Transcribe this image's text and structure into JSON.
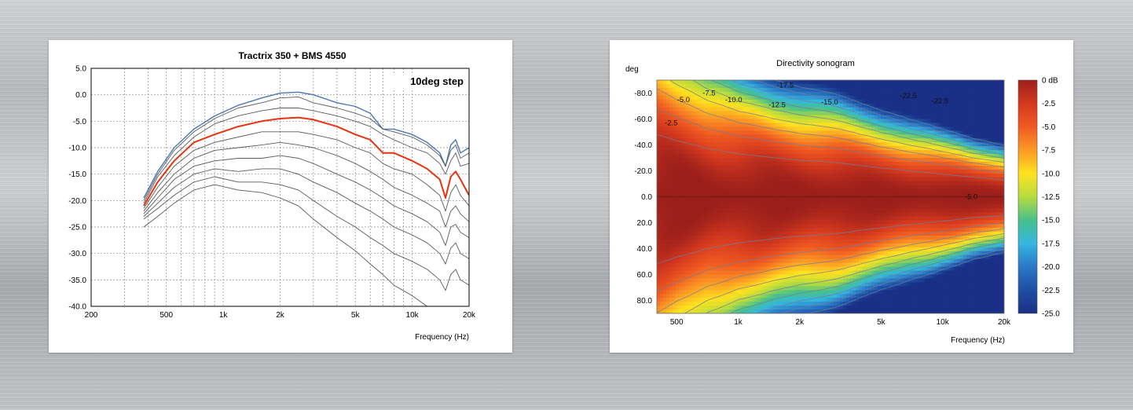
{
  "chart_data": [
    {
      "type": "line",
      "title": "Tractrix 350 + BMS 4550",
      "xlabel": "Frequency (Hz)",
      "ylabel": "",
      "annotation": "10deg step",
      "x_scale": "log",
      "xlim": [
        200,
        20000
      ],
      "ylim": [
        -40,
        5
      ],
      "grid": true,
      "x_ticks": [
        {
          "value": 200,
          "label": "200"
        },
        {
          "value": 500,
          "label": "500"
        },
        {
          "value": 1000,
          "label": "1k"
        },
        {
          "value": 2000,
          "label": "2k"
        },
        {
          "value": 5000,
          "label": "5k"
        },
        {
          "value": 10000,
          "label": "10k"
        },
        {
          "value": 20000,
          "label": "20k"
        }
      ],
      "y_ticks": [
        {
          "value": 5,
          "label": "5.0"
        },
        {
          "value": 0,
          "label": "0.0"
        },
        {
          "value": -5,
          "label": "-5.0"
        },
        {
          "value": -10,
          "label": "-10.0"
        },
        {
          "value": -15,
          "label": "-15.0"
        },
        {
          "value": -20,
          "label": "-20.0"
        },
        {
          "value": -25,
          "label": "-25.0"
        },
        {
          "value": -30,
          "label": "-30.0"
        },
        {
          "value": -35,
          "label": "-35.0"
        },
        {
          "value": -40,
          "label": "-40.0"
        }
      ],
      "x": [
        380,
        450,
        550,
        700,
        900,
        1200,
        1600,
        2000,
        2500,
        3000,
        4000,
        5000,
        6000,
        7000,
        8000,
        10000,
        12000,
        14000,
        15000,
        16000,
        17000,
        18000,
        20000
      ],
      "series": [
        {
          "color": "#4a78b5",
          "values": [
            -19.5,
            -14.5,
            -10,
            -6.5,
            -4,
            -2,
            -0.6,
            0.3,
            0.5,
            0,
            -1.5,
            -2.2,
            -3.5,
            -6.5,
            -6.5,
            -7.5,
            -9,
            -11,
            -13.5,
            -9.5,
            -8.5,
            -11,
            -10
          ]
        },
        {
          "color": "#5a5a5a",
          "values": [
            -20,
            -15,
            -10.5,
            -7,
            -4.5,
            -2.5,
            -1.5,
            -0.6,
            -0.4,
            -1.5,
            -2.5,
            -3.5,
            -4.5,
            -6.5,
            -7,
            -8,
            -9.5,
            -11.5,
            -13.5,
            -10.5,
            -9.5,
            -12,
            -11
          ]
        },
        {
          "color": "#5a5a5a",
          "values": [
            -20.5,
            -15.5,
            -11.5,
            -8,
            -5.5,
            -4,
            -3,
            -2.5,
            -2.5,
            -3,
            -4,
            -5,
            -6,
            -7.5,
            -8.5,
            -10,
            -11,
            -13,
            -15,
            -12.5,
            -11,
            -13.5,
            -13
          ]
        },
        {
          "color": "#e8320f",
          "values": [
            -21,
            -16.5,
            -12.5,
            -9,
            -7.5,
            -6,
            -5,
            -4.5,
            -4.3,
            -4.7,
            -6,
            -7.5,
            -8.5,
            -11,
            -11,
            -12.5,
            -14,
            -16,
            -19.5,
            -15.5,
            -14.5,
            -16,
            -19
          ]
        },
        {
          "color": "#5a5a5a",
          "values": [
            -21.5,
            -17.5,
            -13.5,
            -10.5,
            -9,
            -8,
            -7,
            -7,
            -7,
            -7.5,
            -8.5,
            -10,
            -11,
            -13,
            -14,
            -15,
            -17,
            -19,
            -22,
            -18.5,
            -17,
            -19,
            -21
          ]
        },
        {
          "color": "#5a5a5a",
          "values": [
            -22,
            -18.5,
            -15,
            -12,
            -10.5,
            -10,
            -9.5,
            -9,
            -9.5,
            -10,
            -11.5,
            -13,
            -14.5,
            -16,
            -17.5,
            -19,
            -20.5,
            -22,
            -25,
            -22,
            -21,
            -22.5,
            -24
          ]
        },
        {
          "color": "#5a5a5a",
          "values": [
            -22.5,
            -19.5,
            -16,
            -13.5,
            -12.5,
            -12,
            -12,
            -11.5,
            -12,
            -13,
            -15,
            -16.5,
            -18,
            -19.5,
            -21,
            -22.5,
            -24,
            -26,
            -28.5,
            -25,
            -24.5,
            -26,
            -27
          ]
        },
        {
          "color": "#5a5a5a",
          "values": [
            -23,
            -20.5,
            -17.5,
            -15,
            -14,
            -14.5,
            -14,
            -14,
            -15,
            -16.5,
            -18.5,
            -20.5,
            -22,
            -23.5,
            -25,
            -26.5,
            -28,
            -30,
            -32,
            -29,
            -28,
            -30,
            -31
          ]
        },
        {
          "color": "#5a5a5a",
          "values": [
            -23.5,
            -21.5,
            -19,
            -16.5,
            -15.5,
            -16.5,
            -16.5,
            -17,
            -18,
            -20,
            -23,
            -25,
            -27,
            -28.5,
            -30,
            -31.5,
            -33,
            -35,
            -37,
            -34,
            -33,
            -35,
            -36
          ]
        },
        {
          "color": "#5a5a5a",
          "values": [
            -25,
            -23,
            -20.5,
            -18,
            -17,
            -18,
            -18.5,
            -19.5,
            -21,
            -23.5,
            -27,
            -29.5,
            -32,
            -34,
            -36,
            -38,
            -40,
            -41,
            -42,
            -42,
            -42,
            -42,
            -42
          ]
        }
      ]
    },
    {
      "type": "heatmap",
      "title": "Directivity sonogram",
      "xlabel": "Frequency (Hz)",
      "ylabel": "deg",
      "x_scale": "log",
      "xlim": [
        400,
        20000
      ],
      "ylim": [
        -90,
        90
      ],
      "x_ticks": [
        {
          "value": 500,
          "label": "500"
        },
        {
          "value": 1000,
          "label": "1k"
        },
        {
          "value": 2000,
          "label": "2k"
        },
        {
          "value": 5000,
          "label": "5k"
        },
        {
          "value": 10000,
          "label": "10k"
        },
        {
          "value": 20000,
          "label": "20k"
        }
      ],
      "y_ticks": [
        {
          "value": -80,
          "label": "-80.0"
        },
        {
          "value": -60,
          "label": "-60.0"
        },
        {
          "value": -40,
          "label": "-40.0"
        },
        {
          "value": -20,
          "label": "-20.0"
        },
        {
          "value": 0,
          "label": "0.0"
        },
        {
          "value": 20,
          "label": "20.0"
        },
        {
          "value": 40,
          "label": "40.0"
        },
        {
          "value": 60,
          "label": "60.0"
        },
        {
          "value": 80,
          "label": "80.0"
        }
      ],
      "colorbar": {
        "range": [
          -25,
          0
        ],
        "ticks": [
          {
            "value": 0,
            "label": "0 dB"
          },
          {
            "value": -2.5,
            "label": "-2.5"
          },
          {
            "value": -5,
            "label": "-5.0"
          },
          {
            "value": -7.5,
            "label": "-7.5"
          },
          {
            "value": -10,
            "label": "-10.0"
          },
          {
            "value": -12.5,
            "label": "-12.5"
          },
          {
            "value": -15,
            "label": "-15.0"
          },
          {
            "value": -17.5,
            "label": "-17.5"
          },
          {
            "value": -20,
            "label": "-20.0"
          },
          {
            "value": -22.5,
            "label": "-22.5"
          },
          {
            "value": -25,
            "label": "-25.0"
          }
        ]
      },
      "frequency_points": [
        400,
        500,
        700,
        1000,
        1500,
        2000,
        3000,
        4000,
        5000,
        7000,
        10000,
        14000,
        20000
      ],
      "half_angle_minus_6dB": [
        80,
        72,
        62,
        55,
        50,
        47,
        44,
        40,
        37,
        33,
        29,
        25,
        22
      ],
      "contour_labels": [
        {
          "text": "-2.5",
          "freq": 470,
          "deg": -57
        },
        {
          "text": "-5.0",
          "freq": 540,
          "deg": -75
        },
        {
          "text": "-7.5",
          "freq": 720,
          "deg": -80
        },
        {
          "text": "-10.0",
          "freq": 950,
          "deg": -75
        },
        {
          "text": "-12.5",
          "freq": 1550,
          "deg": -71
        },
        {
          "text": "-17.5",
          "freq": 1700,
          "deg": -86
        },
        {
          "text": "-15.0",
          "freq": 2800,
          "deg": -73
        },
        {
          "text": "-22.5",
          "freq": 6800,
          "deg": -78
        },
        {
          "text": "-22.5",
          "freq": 9700,
          "deg": -74
        },
        {
          "text": "-5.0",
          "freq": 13800,
          "deg": 0
        }
      ]
    }
  ]
}
